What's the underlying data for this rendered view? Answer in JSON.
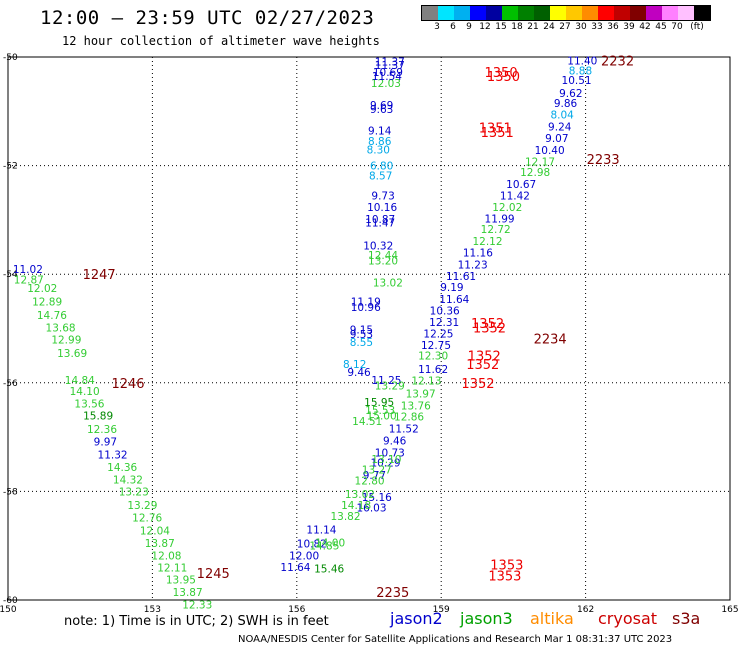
{
  "header": {
    "title": "12:00 — 23:59 UTC 02/27/2023",
    "subtitle": "12 hour collection of altimeter wave heights"
  },
  "color_scale": {
    "colors": [
      "#808080",
      "#00e5ff",
      "#00b0f0",
      "#0000ff",
      "#0000a0",
      "#00c000",
      "#008000",
      "#006000",
      "#ffff00",
      "#ffc800",
      "#ff8c00",
      "#ff0000",
      "#c00000",
      "#800000",
      "#c000c0",
      "#ff80ff",
      "#ffc0ff",
      "#000000"
    ],
    "labels": [
      "3",
      "6",
      "9",
      "12",
      "15",
      "18",
      "21",
      "24",
      "27",
      "30",
      "33",
      "36",
      "39",
      "42",
      "45",
      "70",
      "(ft)"
    ]
  },
  "note": "note: 1) Time is in UTC; 2) SWH is in feet",
  "legend": [
    {
      "name": "jason2",
      "color": "#0000cc"
    },
    {
      "name": "jason3",
      "color": "#00a000"
    },
    {
      "name": "altika",
      "color": "#ff8c00"
    },
    {
      "name": "cryosat",
      "color": "#cc0000"
    },
    {
      "name": "s3a",
      "color": "#800000"
    }
  ],
  "footer": "NOAA/NESDIS Center for Satellite Applications and Research   Mar  1 08:31:37 UTC 2023",
  "chart_data": {
    "type": "scatter",
    "x_range": [
      150,
      165
    ],
    "y_range": [
      -60,
      -50
    ],
    "x_ticks": [
      "150",
      "153",
      "156",
      "159",
      "162",
      "165"
    ],
    "y_ticks": [
      "-50",
      "-52",
      "-54",
      "-56",
      "-58",
      "-60"
    ],
    "grid": true,
    "colors": {
      "blue": "#0000cc",
      "cyan": "#00a8e8",
      "green": "#33cc33",
      "darkgreen": "#008800",
      "red": "#ee0000",
      "maroon": "#800000"
    },
    "points": [
      {
        "lon": 161.62,
        "lat": -50.06,
        "label": "11.40",
        "color": "blue"
      },
      {
        "lon": 161.65,
        "lat": -50.25,
        "label": "8.88",
        "color": "cyan"
      },
      {
        "lon": 161.5,
        "lat": -50.42,
        "label": "10.51",
        "color": "blue"
      },
      {
        "lon": 161.45,
        "lat": -50.66,
        "label": "9.62",
        "color": "blue"
      },
      {
        "lon": 161.34,
        "lat": -50.85,
        "label": "9.86",
        "color": "blue"
      },
      {
        "lon": 161.27,
        "lat": -51.06,
        "label": "8.04",
        "color": "cyan"
      },
      {
        "lon": 161.22,
        "lat": -51.28,
        "label": "9.24",
        "color": "blue"
      },
      {
        "lon": 161.16,
        "lat": -51.49,
        "label": "9.07",
        "color": "blue"
      },
      {
        "lon": 160.94,
        "lat": -51.71,
        "label": "10.40",
        "color": "blue"
      },
      {
        "lon": 160.74,
        "lat": -51.92,
        "label": "12.17",
        "color": "green"
      },
      {
        "lon": 160.64,
        "lat": -52.12,
        "label": "12.98",
        "color": "green"
      },
      {
        "lon": 160.35,
        "lat": -52.34,
        "label": "10.67",
        "color": "blue"
      },
      {
        "lon": 160.22,
        "lat": -52.55,
        "label": "11.42",
        "color": "blue"
      },
      {
        "lon": 160.06,
        "lat": -52.76,
        "label": "12.02",
        "color": "green"
      },
      {
        "lon": 159.9,
        "lat": -52.97,
        "label": "11.99",
        "color": "blue"
      },
      {
        "lon": 159.82,
        "lat": -53.17,
        "label": "12.72",
        "color": "green"
      },
      {
        "lon": 159.65,
        "lat": -53.39,
        "label": "12.12",
        "color": "green"
      },
      {
        "lon": 159.45,
        "lat": -53.6,
        "label": "11.16",
        "color": "blue"
      },
      {
        "lon": 159.34,
        "lat": -53.82,
        "label": "11.23",
        "color": "blue"
      },
      {
        "lon": 159.1,
        "lat": -54.03,
        "label": "11.61",
        "color": "blue"
      },
      {
        "lon": 158.98,
        "lat": -54.24,
        "label": "9.19",
        "color": "blue"
      },
      {
        "lon": 158.96,
        "lat": -54.46,
        "label": "11.64",
        "color": "blue"
      },
      {
        "lon": 158.76,
        "lat": -54.67,
        "label": "10.36",
        "color": "blue"
      },
      {
        "lon": 158.75,
        "lat": -54.88,
        "label": "12.31",
        "color": "blue"
      },
      {
        "lon": 158.63,
        "lat": -55.09,
        "label": "12.25",
        "color": "blue"
      },
      {
        "lon": 158.58,
        "lat": -55.3,
        "label": "12.75",
        "color": "blue"
      },
      {
        "lon": 158.52,
        "lat": -55.5,
        "label": "12.30",
        "color": "green"
      },
      {
        "lon": 158.52,
        "lat": -55.75,
        "label": "11.62",
        "color": "blue"
      },
      {
        "lon": 158.38,
        "lat": -55.96,
        "label": "12.13",
        "color": "green"
      },
      {
        "lon": 158.26,
        "lat": -56.2,
        "label": "13.97",
        "color": "green"
      },
      {
        "lon": 158.16,
        "lat": -56.42,
        "label": "13.76",
        "color": "green"
      },
      {
        "lon": 158.02,
        "lat": -56.62,
        "label": "12.86",
        "color": "green"
      },
      {
        "lon": 157.91,
        "lat": -56.84,
        "label": "11.52",
        "color": "blue"
      },
      {
        "lon": 157.79,
        "lat": -57.06,
        "label": "9.46",
        "color": "blue"
      },
      {
        "lon": 157.62,
        "lat": -57.28,
        "label": "10.73",
        "color": "blue"
      },
      {
        "lon": 157.53,
        "lat": -57.47,
        "label": "10.29",
        "color": "blue"
      },
      {
        "lon": 157.37,
        "lat": -57.7,
        "label": "9.77",
        "color": "blue"
      },
      {
        "lon": 157.35,
        "lat": -58.1,
        "label": "15.16",
        "color": "blue"
      },
      {
        "lon": 157.24,
        "lat": -58.3,
        "label": "16.03",
        "color": "blue"
      },
      {
        "lon": 156.2,
        "lat": -58.7,
        "label": "11.14",
        "color": "blue"
      },
      {
        "lon": 156.0,
        "lat": -58.96,
        "label": "10.82",
        "color": "blue"
      },
      {
        "lon": 155.84,
        "lat": -59.18,
        "label": "12.00",
        "color": "blue"
      },
      {
        "lon": 155.66,
        "lat": -59.39,
        "label": "11.64",
        "color": "blue"
      },
      {
        "lon": 156.38,
        "lat": -58.94,
        "label": "14.00",
        "color": "green"
      },
      {
        "lon": 156.26,
        "lat": -59.0,
        "label": "14.85",
        "color": "green"
      },
      {
        "lon": 156.36,
        "lat": -59.42,
        "label": "15.46",
        "color": "darkgreen"
      },
      {
        "lon": 156.7,
        "lat": -58.45,
        "label": "13.82",
        "color": "green"
      },
      {
        "lon": 156.92,
        "lat": -58.25,
        "label": "14.18",
        "color": "green"
      },
      {
        "lon": 157.0,
        "lat": -58.05,
        "label": "13.02",
        "color": "green"
      },
      {
        "lon": 157.2,
        "lat": -57.8,
        "label": "12.80",
        "color": "green"
      },
      {
        "lon": 157.35,
        "lat": -57.6,
        "label": "13.27",
        "color": "green"
      },
      {
        "lon": 157.55,
        "lat": -57.4,
        "label": "13.10",
        "color": "green"
      },
      {
        "lon": 157.15,
        "lat": -56.7,
        "label": "14.51",
        "color": "green"
      },
      {
        "lon": 157.4,
        "lat": -56.35,
        "label": "15.95",
        "color": "darkgreen"
      },
      {
        "lon": 157.42,
        "lat": -56.5,
        "label": "15.53",
        "color": "green"
      },
      {
        "lon": 157.45,
        "lat": -56.6,
        "label": "15.00",
        "color": "green"
      },
      {
        "lon": 157.55,
        "lat": -55.95,
        "label": "11.25",
        "color": "blue"
      },
      {
        "lon": 157.62,
        "lat": -56.05,
        "label": "13.29",
        "color": "green"
      },
      {
        "lon": 157.05,
        "lat": -55.8,
        "label": "9.46",
        "color": "blue"
      },
      {
        "lon": 156.96,
        "lat": -55.65,
        "label": "8.12",
        "color": "cyan"
      },
      {
        "lon": 157.1,
        "lat": -55.25,
        "label": "8.55",
        "color": "cyan"
      },
      {
        "lon": 157.1,
        "lat": -55.1,
        "label": "9.53",
        "color": "blue"
      },
      {
        "lon": 157.1,
        "lat": -55.02,
        "label": "9.15",
        "color": "blue"
      },
      {
        "lon": 157.12,
        "lat": -54.6,
        "label": "10.96",
        "color": "blue"
      },
      {
        "lon": 157.12,
        "lat": -54.5,
        "label": "11.19",
        "color": "blue"
      },
      {
        "lon": 157.58,
        "lat": -54.15,
        "label": "13.02",
        "color": "green"
      },
      {
        "lon": 157.48,
        "lat": -53.75,
        "label": "13.20",
        "color": "green"
      },
      {
        "lon": 157.48,
        "lat": -53.65,
        "label": "12.44",
        "color": "green"
      },
      {
        "lon": 157.38,
        "lat": -53.47,
        "label": "10.32",
        "color": "blue"
      },
      {
        "lon": 157.42,
        "lat": -53.05,
        "label": "11.47",
        "color": "blue"
      },
      {
        "lon": 157.42,
        "lat": -52.98,
        "label": "10.87",
        "color": "blue"
      },
      {
        "lon": 157.46,
        "lat": -52.76,
        "label": "10.16",
        "color": "blue"
      },
      {
        "lon": 157.55,
        "lat": -52.55,
        "label": "9.73",
        "color": "blue"
      },
      {
        "lon": 157.5,
        "lat": -52.18,
        "label": "8.57",
        "color": "cyan"
      },
      {
        "lon": 157.52,
        "lat": -52.0,
        "label": "6.80",
        "color": "cyan"
      },
      {
        "lon": 157.45,
        "lat": -51.7,
        "label": "8.30",
        "color": "cyan"
      },
      {
        "lon": 157.48,
        "lat": -51.55,
        "label": "8.86",
        "color": "cyan"
      },
      {
        "lon": 157.48,
        "lat": -51.35,
        "label": "9.14",
        "color": "blue"
      },
      {
        "lon": 157.52,
        "lat": -50.96,
        "label": "9.63",
        "color": "blue"
      },
      {
        "lon": 157.52,
        "lat": -50.88,
        "label": "9.69",
        "color": "blue"
      },
      {
        "lon": 157.54,
        "lat": -50.48,
        "label": "12.03",
        "color": "green"
      },
      {
        "lon": 157.56,
        "lat": -50.35,
        "label": "11.54",
        "color": "blue"
      },
      {
        "lon": 157.58,
        "lat": -50.28,
        "label": "10.69",
        "color": "blue"
      },
      {
        "lon": 157.62,
        "lat": -50.08,
        "label": "11.37",
        "color": "blue"
      },
      {
        "lon": 157.62,
        "lat": -50.15,
        "label": "11.37",
        "color": "blue"
      },
      {
        "lon": 150.1,
        "lat": -53.9,
        "label": "11.02",
        "color": "blue"
      },
      {
        "lon": 150.12,
        "lat": -54.1,
        "label": "12.87",
        "color": "green"
      },
      {
        "lon": 150.4,
        "lat": -54.25,
        "label": "12.02",
        "color": "green"
      },
      {
        "lon": 150.5,
        "lat": -54.5,
        "label": "12.89",
        "color": "green"
      },
      {
        "lon": 150.6,
        "lat": -54.75,
        "label": "14.76",
        "color": "green"
      },
      {
        "lon": 150.78,
        "lat": -54.98,
        "label": "13.68",
        "color": "green"
      },
      {
        "lon": 150.9,
        "lat": -55.2,
        "label": "12.99",
        "color": "green"
      },
      {
        "lon": 151.02,
        "lat": -55.45,
        "label": "13.69",
        "color": "green"
      },
      {
        "lon": 151.18,
        "lat": -55.95,
        "label": "14.84",
        "color": "green"
      },
      {
        "lon": 151.28,
        "lat": -56.15,
        "label": "14.10",
        "color": "green"
      },
      {
        "lon": 151.38,
        "lat": -56.38,
        "label": "13.56",
        "color": "green"
      },
      {
        "lon": 151.56,
        "lat": -56.6,
        "label": "15.89",
        "color": "darkgreen"
      },
      {
        "lon": 151.64,
        "lat": -56.85,
        "label": "12.36",
        "color": "green"
      },
      {
        "lon": 151.78,
        "lat": -57.08,
        "label": "9.97",
        "color": "blue"
      },
      {
        "lon": 151.86,
        "lat": -57.32,
        "label": "11.32",
        "color": "blue"
      },
      {
        "lon": 152.06,
        "lat": -57.55,
        "label": "14.36",
        "color": "green"
      },
      {
        "lon": 152.18,
        "lat": -57.78,
        "label": "14.32",
        "color": "green"
      },
      {
        "lon": 152.3,
        "lat": -58.0,
        "label": "13.23",
        "color": "green"
      },
      {
        "lon": 152.48,
        "lat": -58.25,
        "label": "13.29",
        "color": "green"
      },
      {
        "lon": 152.58,
        "lat": -58.48,
        "label": "12.76",
        "color": "green"
      },
      {
        "lon": 152.74,
        "lat": -58.72,
        "label": "12.04",
        "color": "green"
      },
      {
        "lon": 152.84,
        "lat": -58.95,
        "label": "13.87",
        "color": "green"
      },
      {
        "lon": 152.98,
        "lat": -59.18,
        "label": "12.08",
        "color": "green"
      },
      {
        "lon": 153.1,
        "lat": -59.4,
        "label": "12.11",
        "color": "green"
      },
      {
        "lon": 153.28,
        "lat": -59.62,
        "label": "13.95",
        "color": "green"
      },
      {
        "lon": 153.42,
        "lat": -59.85,
        "label": "13.87",
        "color": "green"
      },
      {
        "lon": 153.62,
        "lat": -60.08,
        "label": "12.33",
        "color": "green"
      }
    ],
    "pass_labels": [
      {
        "lon": 162.32,
        "lat": -50.06,
        "label": "2232",
        "color": "maroon"
      },
      {
        "lon": 162.02,
        "lat": -51.88,
        "label": "2233",
        "color": "maroon"
      },
      {
        "lon": 160.92,
        "lat": -55.18,
        "label": "2234",
        "color": "maroon"
      },
      {
        "lon": 157.65,
        "lat": -59.85,
        "label": "2235",
        "color": "maroon"
      },
      {
        "lon": 159.95,
        "lat": -50.35,
        "label": "1350",
        "color": "red"
      },
      {
        "lon": 159.9,
        "lat": -50.28,
        "label": "1350",
        "color": "red"
      },
      {
        "lon": 159.82,
        "lat": -51.38,
        "label": "1351",
        "color": "red"
      },
      {
        "lon": 159.78,
        "lat": -51.3,
        "label": "1351",
        "color": "red"
      },
      {
        "lon": 159.66,
        "lat": -54.98,
        "label": "1352",
        "color": "red"
      },
      {
        "lon": 159.62,
        "lat": -54.9,
        "label": "1352",
        "color": "red"
      },
      {
        "lon": 159.55,
        "lat": -55.5,
        "label": "1352",
        "color": "red"
      },
      {
        "lon": 159.52,
        "lat": -55.65,
        "label": "1352",
        "color": "red"
      },
      {
        "lon": 159.42,
        "lat": -56.0,
        "label": "1352",
        "color": "red"
      },
      {
        "lon": 160.02,
        "lat": -59.35,
        "label": "1353",
        "color": "red"
      },
      {
        "lon": 159.98,
        "lat": -59.55,
        "label": "1353",
        "color": "red"
      },
      {
        "lon": 151.55,
        "lat": -54.0,
        "label": "1247",
        "color": "maroon"
      },
      {
        "lon": 152.15,
        "lat": -56.0,
        "label": "1246",
        "color": "maroon"
      },
      {
        "lon": 153.92,
        "lat": -59.5,
        "label": "1245",
        "color": "maroon"
      }
    ]
  }
}
